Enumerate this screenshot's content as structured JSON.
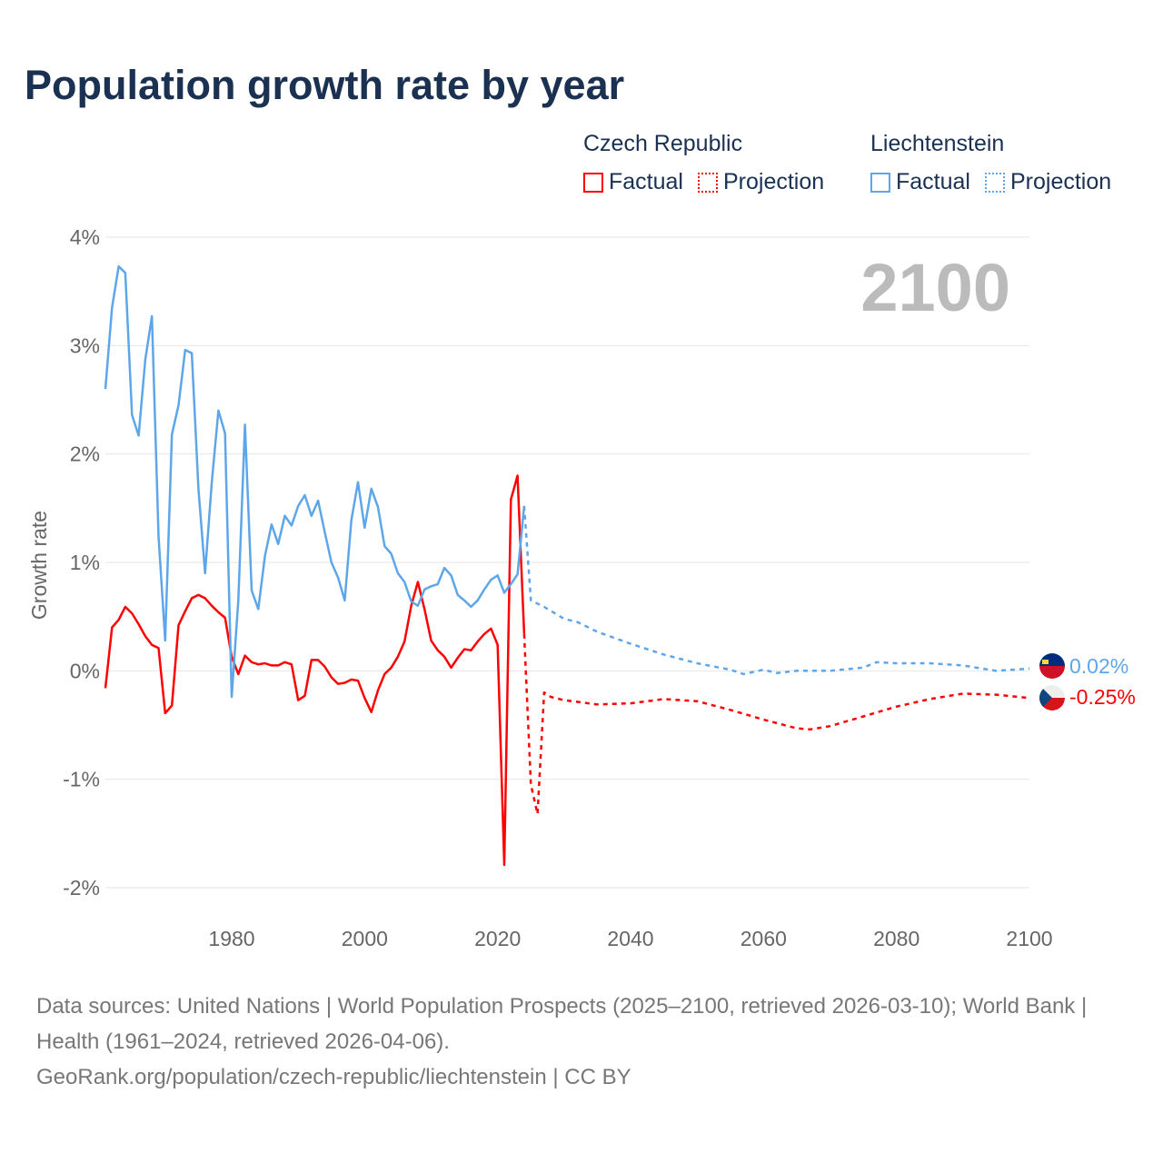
{
  "title": "Population growth rate by year",
  "legend": {
    "groups": [
      {
        "name": "Czech Republic",
        "color": "#ff0000",
        "factual": "Factual",
        "projection": "Projection"
      },
      {
        "name": "Liechtenstein",
        "color": "#5ea6ea",
        "factual": "Factual",
        "projection": "Projection"
      }
    ]
  },
  "year_label": "2100",
  "end_labels": {
    "liechtenstein": "0.02%",
    "czech": "-0.25%"
  },
  "footer": {
    "sources": "Data sources: United Nations | World Population Prospects (2025–2100, retrieved 2026-03-10); World Bank | Health (1961–2024, retrieved 2026-04-06).",
    "credit": "GeoRank.org/population/czech-republic/liechtenstein | CC BY"
  },
  "chart_data": {
    "type": "line",
    "title": "Population growth rate by year",
    "xlabel": "",
    "ylabel": "Growth rate",
    "xlim": [
      1961,
      2100
    ],
    "ylim": [
      -2,
      4
    ],
    "xticks": [
      1980,
      2000,
      2020,
      2040,
      2060,
      2080,
      2100
    ],
    "xtick_labels": [
      "1980",
      "2000",
      "2020",
      "2040",
      "2060",
      "2080",
      "2100"
    ],
    "yticks": [
      -2,
      -1,
      0,
      1,
      2,
      3,
      4
    ],
    "ytick_labels": [
      "-2%",
      "-1%",
      "0%",
      "1%",
      "2%",
      "3%",
      "4%"
    ],
    "grid": true,
    "legend_position": "top-right",
    "series": [
      {
        "name": "Czech Republic Factual",
        "country": "Czech Republic",
        "style": "solid",
        "color": "#ff0000",
        "x": [
          1961,
          1962,
          1963,
          1964,
          1965,
          1966,
          1967,
          1968,
          1969,
          1970,
          1971,
          1972,
          1973,
          1974,
          1975,
          1976,
          1977,
          1978,
          1979,
          1980,
          1981,
          1982,
          1983,
          1984,
          1985,
          1986,
          1987,
          1988,
          1989,
          1990,
          1991,
          1992,
          1993,
          1994,
          1995,
          1996,
          1997,
          1998,
          1999,
          2000,
          2001,
          2002,
          2003,
          2004,
          2005,
          2006,
          2007,
          2008,
          2009,
          2010,
          2011,
          2012,
          2013,
          2014,
          2015,
          2016,
          2017,
          2018,
          2019,
          2020,
          2021,
          2022,
          2023,
          2024
        ],
        "y": [
          -0.16,
          0.4,
          0.47,
          0.59,
          0.53,
          0.43,
          0.32,
          0.24,
          0.21,
          -0.39,
          -0.32,
          0.42,
          0.55,
          0.67,
          0.7,
          0.67,
          0.6,
          0.54,
          0.49,
          0.13,
          -0.03,
          0.14,
          0.08,
          0.06,
          0.07,
          0.05,
          0.05,
          0.08,
          0.06,
          -0.27,
          -0.23,
          0.1,
          0.1,
          0.04,
          -0.06,
          -0.12,
          -0.11,
          -0.08,
          -0.09,
          -0.25,
          -0.38,
          -0.18,
          -0.03,
          0.03,
          0.13,
          0.27,
          0.6,
          0.82,
          0.57,
          0.28,
          0.19,
          0.13,
          0.03,
          0.12,
          0.2,
          0.19,
          0.27,
          0.34,
          0.39,
          0.24,
          -1.79,
          1.58,
          1.8,
          0.34
        ]
      },
      {
        "name": "Czech Republic Projection",
        "country": "Czech Republic",
        "style": "dotted",
        "color": "#ff0000",
        "x": [
          2024,
          2025,
          2026,
          2027,
          2028,
          2030,
          2035,
          2040,
          2045,
          2050,
          2055,
          2060,
          2065,
          2067,
          2070,
          2075,
          2080,
          2085,
          2090,
          2095,
          2100
        ],
        "y": [
          0.34,
          -1.05,
          -1.32,
          -0.2,
          -0.24,
          -0.27,
          -0.31,
          -0.3,
          -0.26,
          -0.28,
          -0.36,
          -0.45,
          -0.53,
          -0.54,
          -0.51,
          -0.42,
          -0.33,
          -0.26,
          -0.21,
          -0.22,
          -0.25
        ]
      },
      {
        "name": "Liechtenstein Factual",
        "country": "Liechtenstein",
        "style": "solid",
        "color": "#5ea6ea",
        "x": [
          1961,
          1962,
          1963,
          1964,
          1965,
          1966,
          1967,
          1968,
          1969,
          1970,
          1971,
          1972,
          1973,
          1974,
          1975,
          1976,
          1977,
          1978,
          1979,
          1980,
          1981,
          1982,
          1983,
          1984,
          1985,
          1986,
          1987,
          1988,
          1989,
          1990,
          1991,
          1992,
          1993,
          1994,
          1995,
          1996,
          1997,
          1998,
          1999,
          2000,
          2001,
          2002,
          2003,
          2004,
          2005,
          2006,
          2007,
          2008,
          2009,
          2010,
          2011,
          2012,
          2013,
          2014,
          2015,
          2016,
          2017,
          2018,
          2019,
          2020,
          2021,
          2022,
          2023,
          2024
        ],
        "y": [
          2.6,
          3.35,
          3.73,
          3.67,
          2.36,
          2.17,
          2.87,
          3.27,
          1.24,
          0.28,
          2.18,
          2.45,
          2.96,
          2.93,
          1.68,
          0.9,
          1.74,
          2.4,
          2.19,
          -0.24,
          0.65,
          2.27,
          0.74,
          0.57,
          1.06,
          1.35,
          1.17,
          1.43,
          1.34,
          1.52,
          1.62,
          1.43,
          1.57,
          1.28,
          1.0,
          0.86,
          0.65,
          1.39,
          1.74,
          1.32,
          1.68,
          1.51,
          1.15,
          1.08,
          0.9,
          0.82,
          0.64,
          0.6,
          0.75,
          0.78,
          0.8,
          0.95,
          0.88,
          0.7,
          0.65,
          0.59,
          0.65,
          0.75,
          0.84,
          0.88,
          0.72,
          0.8,
          0.89,
          1.52
        ]
      },
      {
        "name": "Liechtenstein Projection",
        "country": "Liechtenstein",
        "style": "dotted",
        "color": "#5ea6ea",
        "x": [
          2024,
          2025,
          2027,
          2030,
          2032,
          2035,
          2040,
          2045,
          2050,
          2055,
          2057,
          2060,
          2062,
          2065,
          2070,
          2075,
          2077,
          2080,
          2085,
          2090,
          2095,
          2100
        ],
        "y": [
          1.52,
          0.65,
          0.59,
          0.48,
          0.45,
          0.36,
          0.25,
          0.15,
          0.07,
          0.01,
          -0.03,
          0.01,
          -0.02,
          0.0,
          0.0,
          0.03,
          0.08,
          0.07,
          0.07,
          0.05,
          0.0,
          0.02
        ]
      }
    ]
  }
}
